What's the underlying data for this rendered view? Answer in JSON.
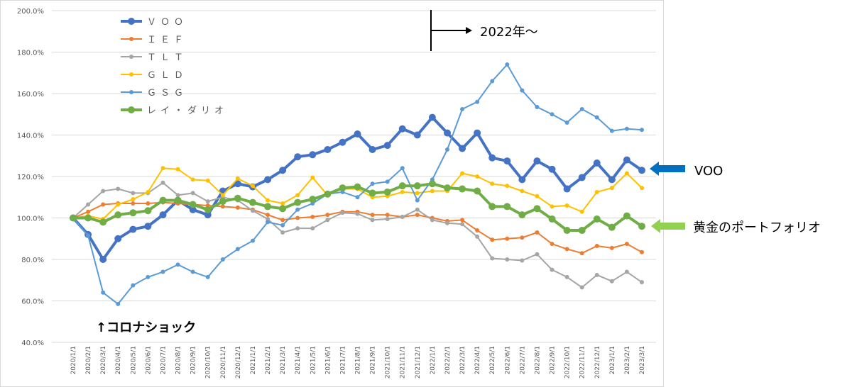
{
  "chart_data": {
    "type": "line",
    "title": "",
    "xlabel": "",
    "ylabel": "",
    "ylim": [
      40,
      200
    ],
    "y_ticks": [
      "40.0%",
      "60.0%",
      "80.0%",
      "100.0%",
      "120.0%",
      "140.0%",
      "160.0%",
      "180.0%",
      "200.0%"
    ],
    "y_tick_values": [
      40,
      60,
      80,
      100,
      120,
      140,
      160,
      180,
      200
    ],
    "grid": true,
    "legend_position": "top-left",
    "categories": [
      "2020/1/1",
      "2020/2/1",
      "2020/3/1",
      "2020/4/1",
      "2020/5/1",
      "2020/6/1",
      "2020/7/1",
      "2020/8/1",
      "2020/9/1",
      "2020/10/1",
      "2020/11/1",
      "2020/12/1",
      "2021/1/1",
      "2021/2/1",
      "2021/3/1",
      "2021/4/1",
      "2021/5/1",
      "2021/6/1",
      "2021/7/1",
      "2021/8/1",
      "2021/9/1",
      "2021/10/1",
      "2021/11/1",
      "2021/12/1",
      "2022/1/1",
      "2022/2/1",
      "2022/3/1",
      "2022/4/1",
      "2022/5/1",
      "2022/6/1",
      "2022/7/1",
      "2022/8/1",
      "2022/9/1",
      "2022/10/1",
      "2022/11/1",
      "2022/12/1",
      "2023/1/1",
      "2023/2/1",
      "2023/3/1"
    ],
    "series": [
      {
        "name": "ＶＯＯ",
        "color": "#4472C4",
        "width": 4,
        "marker": 5,
        "values": [
          100,
          92,
          80,
          90,
          94.5,
          96,
          101.5,
          108.5,
          104,
          101.5,
          113,
          116.5,
          115,
          118.5,
          123,
          129.5,
          130.5,
          133,
          136.5,
          140.5,
          133,
          135,
          143,
          140,
          148.5,
          141,
          133.5,
          141,
          129,
          127.5,
          118.5,
          127.5,
          123.5,
          114,
          119.5,
          126.5,
          118.5,
          128,
          123
        ]
      },
      {
        "name": "ＩＥＦ",
        "color": "#ED7D31",
        "width": 2,
        "marker": 3,
        "values": [
          100,
          103,
          106.5,
          107,
          107,
          107,
          107.5,
          107,
          106.5,
          106,
          105.5,
          105,
          104,
          101.5,
          99,
          100,
          100.5,
          101.5,
          103,
          103,
          101.5,
          101.5,
          100.5,
          101.5,
          100,
          98.5,
          99,
          94,
          89.5,
          90,
          90.5,
          93,
          87.5,
          85,
          83,
          86.5,
          85.5,
          87.5,
          83.5
        ]
      },
      {
        "name": "ＴＬＴ",
        "color": "#A5A5A5",
        "width": 2,
        "marker": 3,
        "values": [
          100,
          106.5,
          113,
          114,
          112,
          112,
          117,
          111,
          112,
          108,
          110,
          108.5,
          103.5,
          99.5,
          93,
          95,
          95,
          99,
          102.5,
          102,
          99,
          99.5,
          100.5,
          104,
          99,
          97.5,
          97,
          91,
          80.5,
          80,
          79.5,
          82.5,
          75,
          71.5,
          66.5,
          72.5,
          69.5,
          74,
          69
        ]
      },
      {
        "name": "ＧＬＤ",
        "color": "#FFC000",
        "width": 2,
        "marker": 3,
        "values": [
          100,
          101,
          99.5,
          106.5,
          109,
          112.5,
          124,
          123.5,
          118.5,
          118,
          111,
          119,
          115.5,
          108.5,
          107,
          111,
          119.5,
          111,
          114,
          114,
          110,
          110.5,
          112.5,
          112,
          113,
          113,
          121.5,
          120,
          116.5,
          115.5,
          113,
          110.5,
          105.5,
          106,
          103,
          112.5,
          114.5,
          121.5,
          114.5
        ]
      },
      {
        "name": "ＧＳＧ",
        "color": "#5B9BD5",
        "width": 2,
        "marker": 3,
        "values": [
          100,
          91.5,
          64,
          58.5,
          67.5,
          71.5,
          74,
          77.5,
          74,
          71.5,
          80,
          85,
          89,
          98,
          96.5,
          104,
          107,
          111.5,
          112.5,
          110,
          116.5,
          117.5,
          124,
          108.5,
          118.5,
          133,
          152.5,
          156,
          166,
          174,
          161.5,
          153.5,
          150,
          146,
          152.5,
          148.5,
          142,
          143,
          142.5
        ]
      },
      {
        "name": "レイ・ダリオ",
        "color": "#70AD47",
        "width": 4,
        "marker": 5,
        "values": [
          100,
          100,
          98,
          101.5,
          102.5,
          103.5,
          108.5,
          108.5,
          106.5,
          104,
          108,
          109.5,
          107.5,
          105.5,
          104.5,
          107.5,
          109,
          111.5,
          114.5,
          115,
          112,
          112.5,
          115.5,
          115.5,
          116.5,
          114.5,
          114,
          113,
          105.5,
          105.5,
          101.5,
          104.5,
          99.5,
          94,
          94,
          99.5,
          95.5,
          101,
          96
        ]
      }
    ],
    "annotations": {
      "year_label": "2022年～",
      "covid_label": "↑コロナショック",
      "voo_label": "VOO",
      "gold_label": "黄金のポートフォリオ"
    }
  }
}
